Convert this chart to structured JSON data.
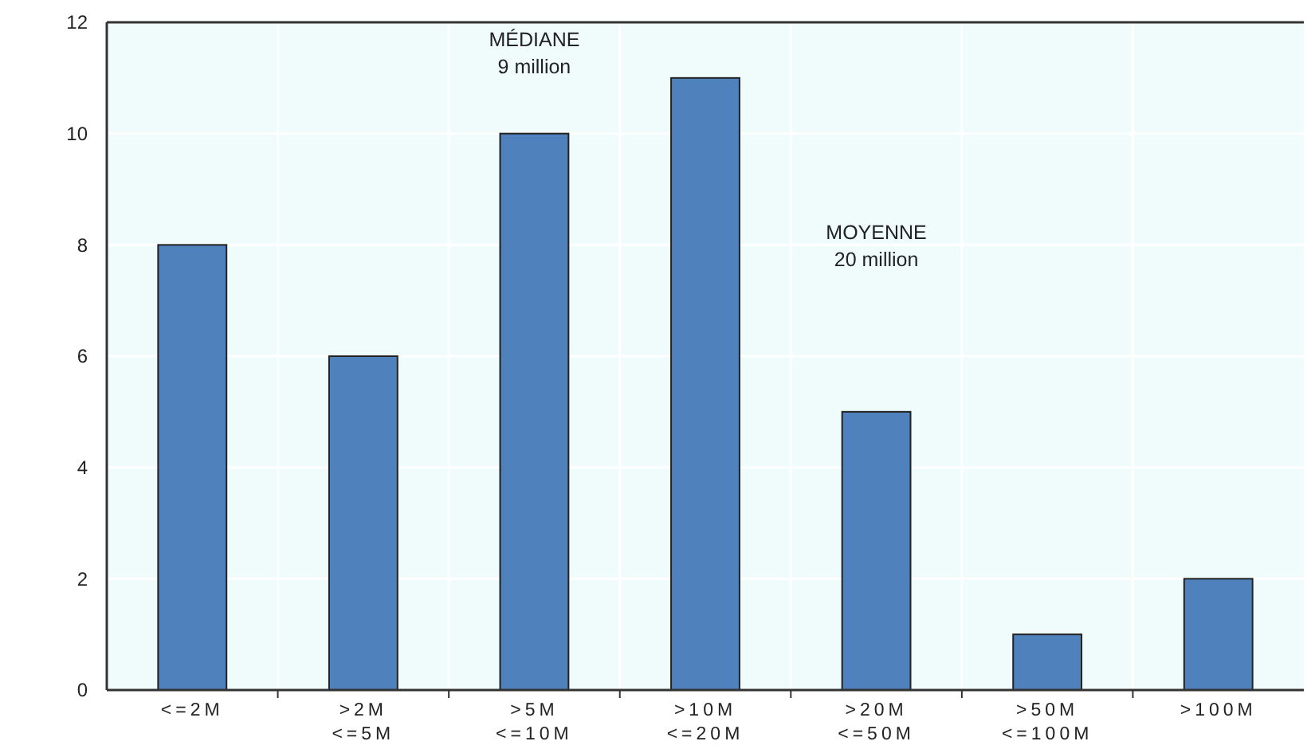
{
  "chart_data": {
    "type": "bar",
    "categories": [
      "<=2M",
      ">2M\n<=5M",
      ">5M\n<=10M",
      ">10M\n<=20M",
      ">20M\n<=50M",
      ">50M\n<=100M",
      ">100M"
    ],
    "values": [
      8,
      6,
      10,
      11,
      5,
      1,
      2
    ],
    "color": "#4f81bd",
    "ylim": [
      0,
      12
    ],
    "yticks": [
      0,
      2,
      4,
      6,
      8,
      10,
      12
    ],
    "grid": true,
    "annotations": [
      "MÉDIANE\n9 million",
      "MOYENNE\n20 million"
    ]
  }
}
